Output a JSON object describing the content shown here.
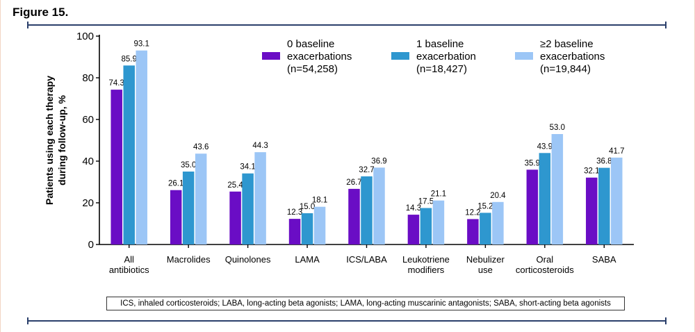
{
  "figure_label": "Figure 15.",
  "footnote": "ICS, inhaled corticosteroids; LABA, long-acting beta agonists; LAMA, long-acting muscarinic antagonists; SABA, short-acting beta agonists",
  "colors": {
    "series0": "#6a0dc5",
    "series1": "#2e97cf",
    "series2": "#9cc6f6",
    "rule": "#2a3f6b"
  },
  "chart_data": {
    "type": "bar",
    "ylabel": "Patients using each therapy\nduring follow-up, %",
    "xlabel": "",
    "ylim": [
      0,
      100
    ],
    "yticks": [
      0,
      20,
      40,
      60,
      80,
      100
    ],
    "grid": false,
    "legend_position": "top-right",
    "categories": [
      "All\nantibiotics",
      "Macrolides",
      "Quinolones",
      "LAMA",
      "ICS/LABA",
      "Leukotriene\nmodifiers",
      "Nebulizer\nuse",
      "Oral\ncorticosteroids",
      "SABA"
    ],
    "series": [
      {
        "name": "0 baseline\nexacerbations\n(n=54,258)",
        "values": [
          74.3,
          26.1,
          25.4,
          12.3,
          26.7,
          14.3,
          12.2,
          35.9,
          32.1
        ]
      },
      {
        "name": "1 baseline\nexacerbation\n(n=18,427)",
        "values": [
          85.9,
          35.0,
          34.1,
          15.0,
          32.7,
          17.5,
          15.2,
          43.9,
          36.8
        ]
      },
      {
        "name": "≥2 baseline\nexacerbations\n(n=19,844)",
        "values": [
          93.1,
          43.6,
          44.3,
          18.1,
          36.9,
          21.1,
          20.4,
          53.0,
          41.7
        ]
      }
    ]
  }
}
